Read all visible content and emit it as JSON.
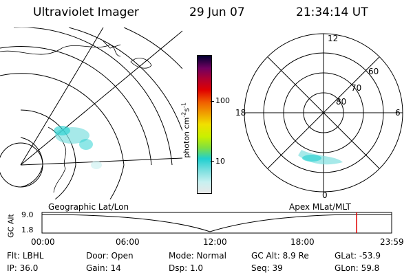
{
  "header": {
    "instrument": "Ultraviolet Imager",
    "date": "29 Jun 07",
    "time": "21:34:14 UT"
  },
  "colorbar": {
    "unit": "photon cm",
    "unit_exp1": "-2",
    "unit_mid": "s",
    "unit_exp2": "-1",
    "tick_100": "100",
    "tick_10": "10",
    "colors": [
      "#e8e8e8",
      "#c8f0f0",
      "#80e0e0",
      "#20d0d0",
      "#80e040",
      "#c8f000",
      "#f0e000",
      "#f0a000",
      "#f06000",
      "#e00000",
      "#b00030",
      "#700060",
      "#300060",
      "#000030"
    ]
  },
  "polar_plot": {
    "mlt_12": "12",
    "mlt_18": "18",
    "mlt_6": "6",
    "mlt_0": "0",
    "lat_60": "60",
    "lat_70": "70",
    "lat_80": "80"
  },
  "timeline": {
    "left_label": "Geographic Lat/Lon",
    "right_label": "Apex MLat/MLT",
    "y_axis_label": "GC Alt",
    "y_tick_top": "9.0",
    "y_tick_bottom": "1.8",
    "x_ticks": [
      "00:00",
      "06:00",
      "12:00",
      "18:00",
      "23:59"
    ]
  },
  "status": {
    "flt_label": "Flt:",
    "flt_value": "LBHL",
    "door_label": "Door:",
    "door_value": "Open",
    "mode_label": "Mode:",
    "mode_value": "Normal",
    "gcalt_label": "GC Alt:",
    "gcalt_value": "8.9 Re",
    "glat_label": "GLat:",
    "glat_value": "-53.9",
    "ip_label": "IP:",
    "ip_value": "36.0",
    "gain_label": "Gain:",
    "gain_value": "14",
    "dsp_label": "Dsp:",
    "dsp_value": "1.0",
    "seq_label": "Seq:",
    "seq_value": "39",
    "glon_label": "GLon:",
    "glon_value": "59.8"
  }
}
